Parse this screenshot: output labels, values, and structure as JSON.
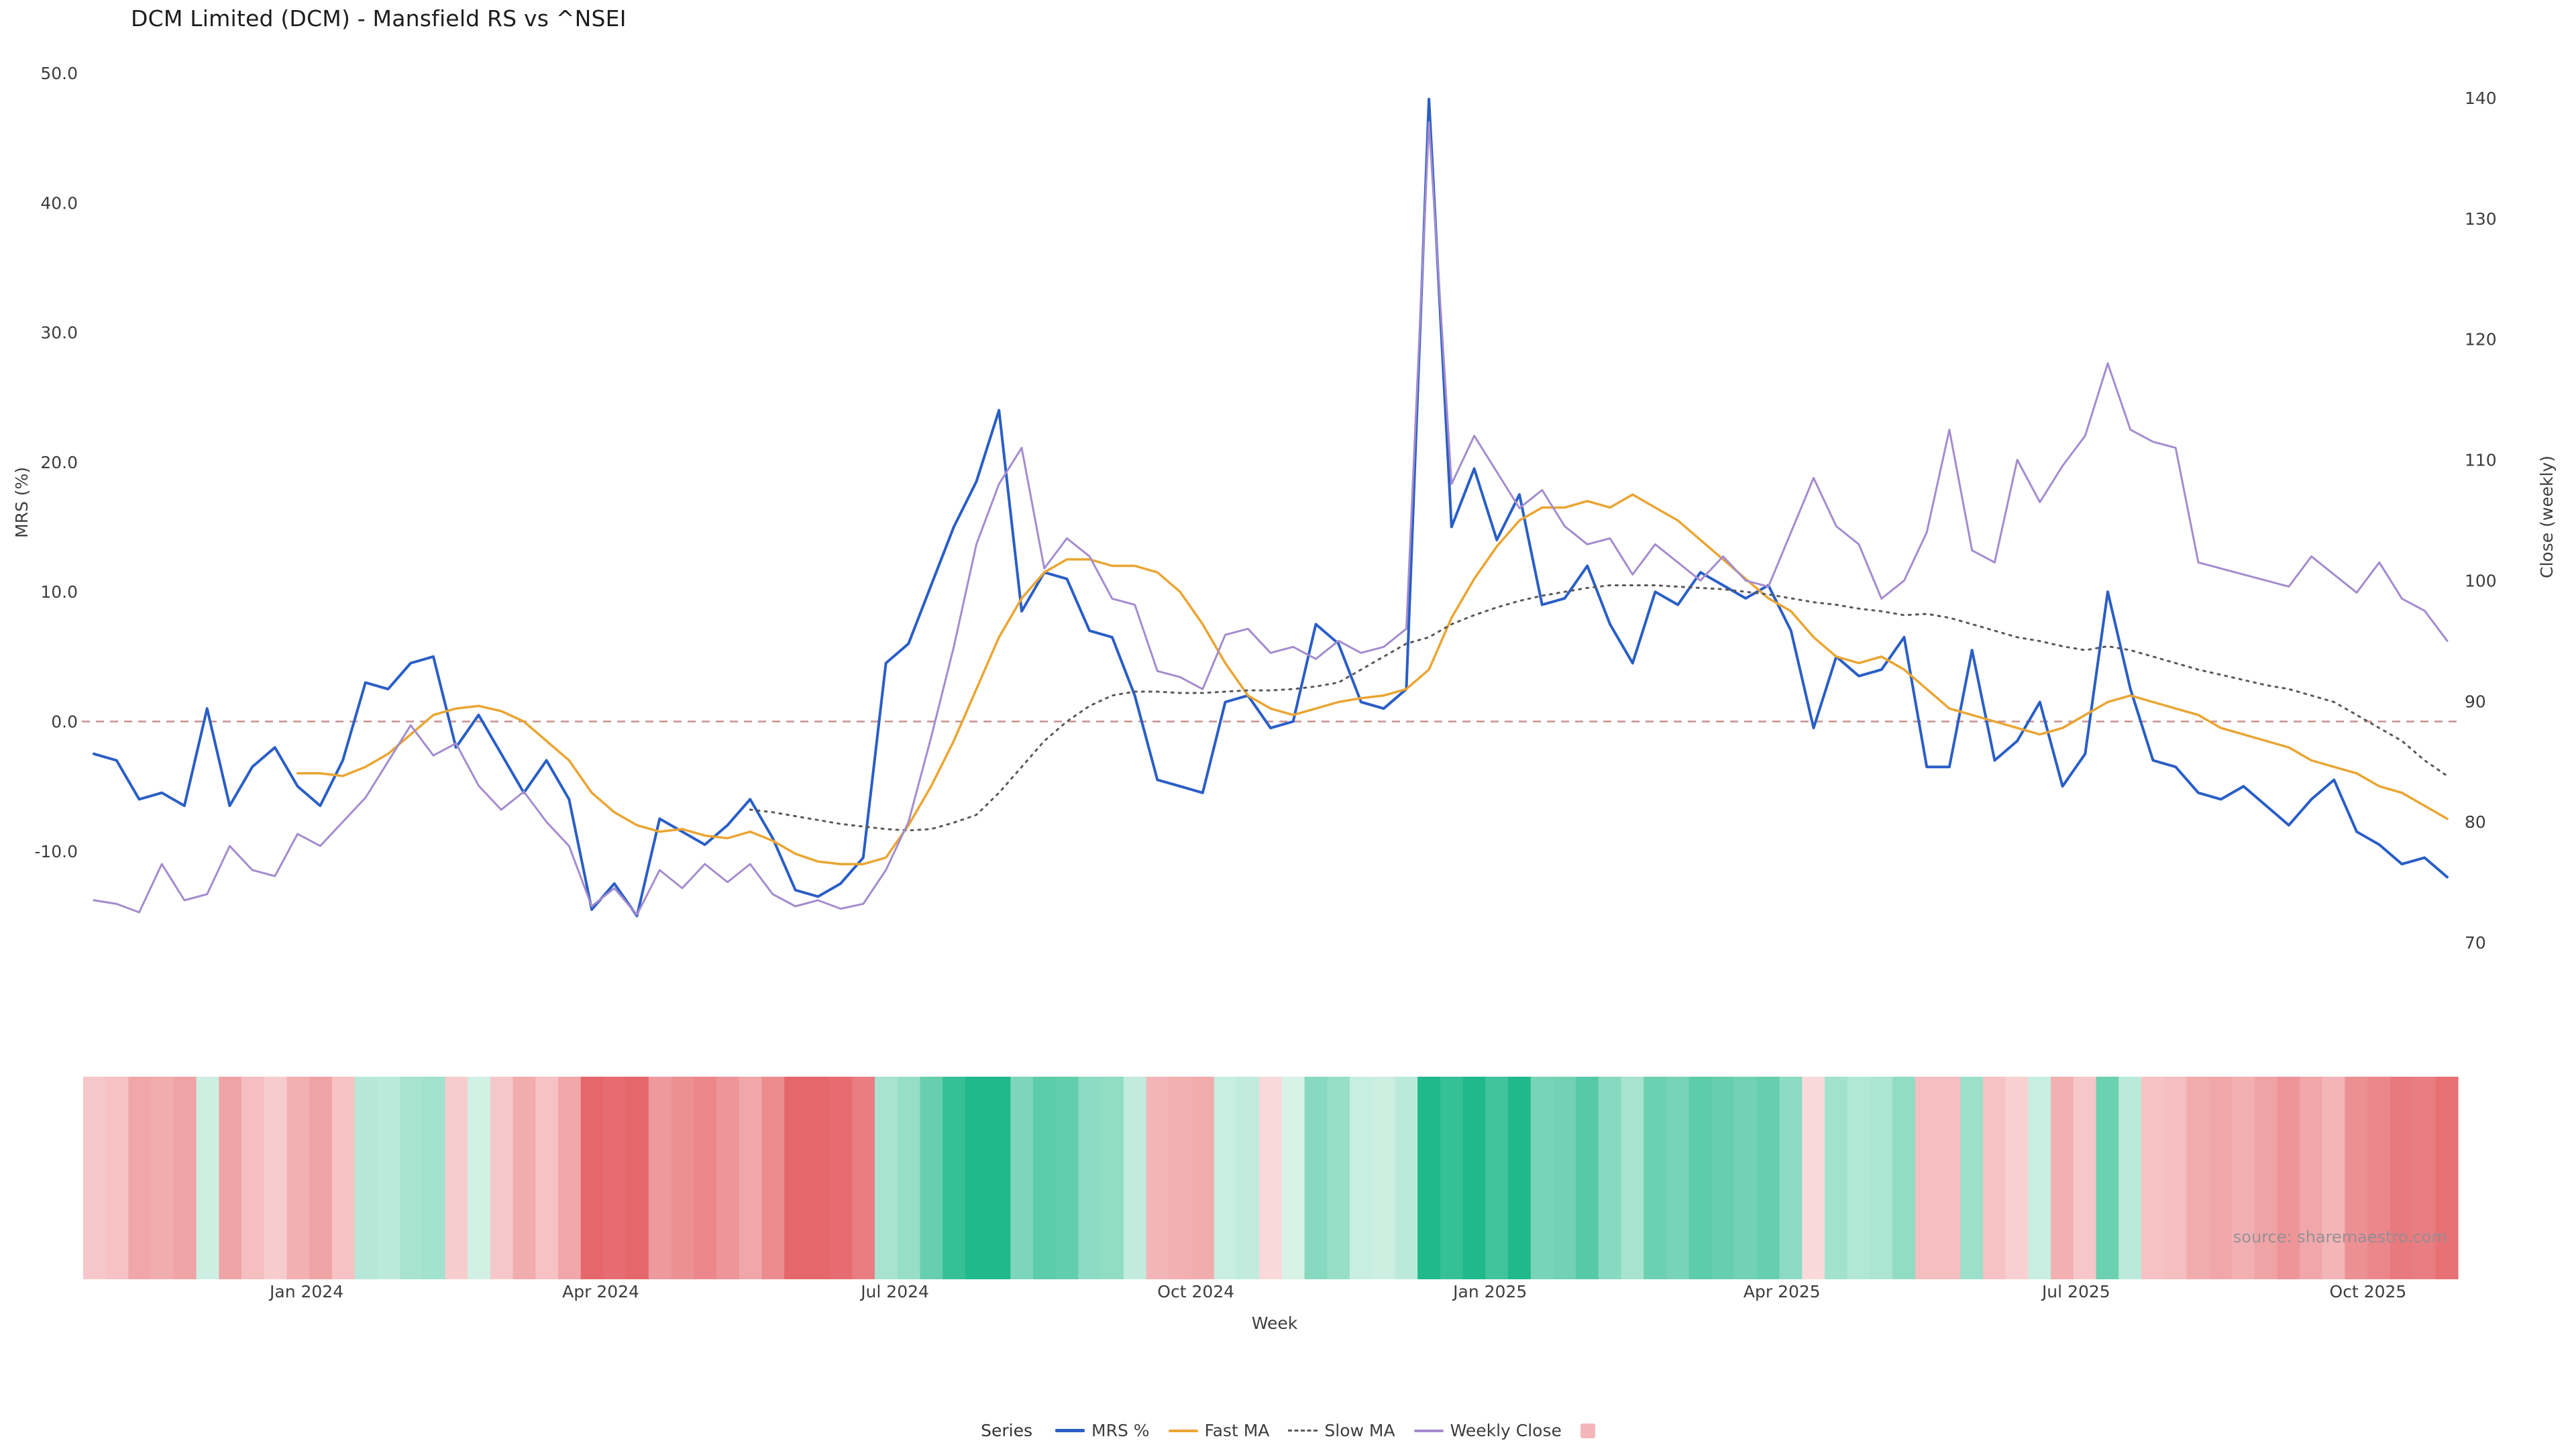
{
  "title": "DCM Limited (DCM) - Mansfield RS vs ^NSEI",
  "watermark": "source: sharemaestro.com",
  "axes": {
    "left_title": "MRS (%)",
    "right_title": "Close (weekly)",
    "x_title": "Week"
  },
  "legend": {
    "title": "Series",
    "items": [
      {
        "label": "MRS %",
        "color": "#2a5ec6",
        "style": "solid"
      },
      {
        "label": "Fast MA",
        "color": "#eaa532",
        "style": "solid"
      },
      {
        "label": "Slow MA",
        "color": "#595959",
        "style": "dashed"
      },
      {
        "label": "Weekly Close",
        "color": "#a48cce",
        "style": "solid"
      },
      {
        "label": "",
        "color": "#f5b6bb",
        "style": "square"
      }
    ]
  },
  "chart_data": {
    "type": "line",
    "x_unit": "week",
    "n_points": 105,
    "x_ticks": [
      {
        "label": "Jan 2024",
        "week": 9.4
      },
      {
        "label": "Apr 2024",
        "week": 22.4
      },
      {
        "label": "Jul 2024",
        "week": 35.4
      },
      {
        "label": "Oct 2024",
        "week": 48.7
      },
      {
        "label": "Jan 2025",
        "week": 61.7
      },
      {
        "label": "Apr 2025",
        "week": 74.6
      },
      {
        "label": "Jul 2025",
        "week": 87.6
      },
      {
        "label": "Oct 2025",
        "week": 100.5
      }
    ],
    "left_axis": {
      "ticks": [
        50,
        40,
        30,
        20,
        10,
        0,
        -10
      ],
      "labels": [
        "50.0",
        "40.0",
        "30.0",
        "20.0",
        "10.0",
        "0.0",
        "-10.0"
      ],
      "range_top": 50,
      "range_bottom": -10
    },
    "right_axis": {
      "ticks": [
        140,
        130,
        120,
        110,
        100,
        90,
        80,
        70
      ],
      "labels": [
        "140",
        "130",
        "120",
        "110",
        "100",
        "90",
        "80",
        "70"
      ],
      "range_top": 140,
      "range_bottom": 70
    },
    "zero_line": {
      "value": 0,
      "color": "#c98f8f",
      "style": "dashed"
    },
    "grid": false,
    "legend_position": "bottom",
    "series": [
      {
        "id": "mrs",
        "name": "MRS %",
        "axis": "left",
        "color": "#2a5ec6",
        "width": 4,
        "dash": false,
        "values": [
          -2.5,
          -3,
          -6,
          -5.5,
          -6.5,
          1,
          -6.5,
          -3.5,
          -2,
          -5,
          -6.5,
          -3,
          3,
          2.5,
          4.5,
          5,
          -2,
          0.5,
          -2.5,
          -5.5,
          -3,
          -6,
          -14.5,
          -12.5,
          -15,
          -7.5,
          -8.5,
          -9.5,
          -8,
          -6,
          -9,
          -13,
          -13.5,
          -12.5,
          -10.5,
          4.5,
          6,
          10.5,
          15,
          18.5,
          24,
          8.5,
          11.5,
          11,
          7,
          6.5,
          2,
          -4.5,
          -5,
          -5.5,
          1.5,
          2,
          -0.5,
          0,
          7.5,
          6,
          1.5,
          1,
          2.5,
          48,
          15,
          19.5,
          14,
          17.5,
          9,
          9.5,
          12,
          7.5,
          4.5,
          10,
          9,
          11.5,
          10.5,
          9.5,
          10.5,
          7,
          -0.5,
          5,
          3.5,
          4,
          6.5,
          -3.5,
          -3.5,
          5.5,
          -3,
          -1.5,
          1.5,
          -5,
          -2.5,
          10,
          2.5,
          -3,
          -3.5,
          -5.5,
          -6,
          -5,
          -6.5,
          -8,
          -6,
          -4.5,
          -8.5,
          -9.5,
          -11,
          -10.5,
          -12
        ]
      },
      {
        "id": "fast-ma",
        "name": "Fast MA",
        "axis": "left",
        "color": "#eaa532",
        "width": 3.5,
        "dash": false,
        "values": [
          null,
          null,
          null,
          null,
          null,
          null,
          null,
          null,
          null,
          -4,
          -4,
          -4.2,
          -3.5,
          -2.5,
          -1,
          0.5,
          1,
          1.2,
          0.8,
          0,
          -1.5,
          -3,
          -5.5,
          -7,
          -8,
          -8.5,
          -8.3,
          -8.8,
          -9,
          -8.5,
          -9.2,
          -10.2,
          -10.8,
          -11,
          -11,
          -10.5,
          -8,
          -5,
          -1.5,
          2.5,
          6.5,
          9.5,
          11.5,
          12.5,
          12.5,
          12,
          12,
          11.5,
          10,
          7.5,
          4.5,
          2,
          1,
          0.5,
          1,
          1.5,
          1.8,
          2,
          2.5,
          4,
          8,
          11,
          13.5,
          15.5,
          16.5,
          16.5,
          17,
          16.5,
          17.5,
          16.5,
          15.5,
          14,
          12.5,
          11,
          9.5,
          8.5,
          6.5,
          5,
          4.5,
          5,
          4,
          2.5,
          1,
          0.5,
          0,
          -0.5,
          -1,
          -0.5,
          0.5,
          1.5,
          2,
          1.5,
          1,
          0.5,
          -0.5,
          -1,
          -1.5,
          -2,
          -3,
          -3.5,
          -4,
          -5,
          -5.5,
          -6.5,
          -7.5
        ]
      },
      {
        "id": "slow-ma",
        "name": "Slow MA",
        "axis": "left",
        "color": "#595959",
        "width": 3,
        "dash": true,
        "values": [
          null,
          null,
          null,
          null,
          null,
          null,
          null,
          null,
          null,
          null,
          null,
          null,
          null,
          null,
          null,
          null,
          null,
          null,
          null,
          null,
          null,
          null,
          null,
          null,
          null,
          null,
          null,
          null,
          null,
          -6.8,
          -7,
          -7.3,
          -7.6,
          -7.9,
          -8.1,
          -8.3,
          -8.4,
          -8.3,
          -7.8,
          -7.2,
          -5.5,
          -3.5,
          -1.5,
          0,
          1.2,
          2,
          2.3,
          2.3,
          2.2,
          2.2,
          2.3,
          2.4,
          2.4,
          2.5,
          2.7,
          3,
          4,
          5,
          6,
          6.5,
          7.5,
          8.2,
          8.8,
          9.3,
          9.7,
          10,
          10.3,
          10.5,
          10.5,
          10.5,
          10.4,
          10.3,
          10.2,
          10,
          9.8,
          9.5,
          9.2,
          9,
          8.7,
          8.5,
          8.2,
          8.3,
          8,
          7.5,
          7,
          6.5,
          6.2,
          5.8,
          5.5,
          5.8,
          5.5,
          5,
          4.5,
          4,
          3.6,
          3.2,
          2.8,
          2.5,
          2,
          1.5,
          0.5,
          -0.5,
          -1.5,
          -3,
          -4.2
        ]
      },
      {
        "id": "weekly-close",
        "name": "Weekly Close",
        "axis": "right",
        "color": "#a48cce",
        "width": 3,
        "dash": false,
        "values": [
          73.5,
          73.2,
          72.5,
          76.5,
          73.5,
          74,
          78,
          76,
          75.5,
          79,
          78,
          80,
          82,
          85,
          88,
          85.5,
          86.5,
          83,
          81,
          82.5,
          80,
          78,
          73,
          74.5,
          72.3,
          76,
          74.5,
          76.5,
          75,
          76.5,
          74,
          73,
          73.5,
          72.8,
          73.2,
          76,
          80,
          87,
          94.5,
          103,
          108,
          111,
          101,
          103.5,
          102,
          98.5,
          98,
          92.5,
          92,
          91,
          95.5,
          96,
          94,
          94.5,
          93.5,
          95,
          94,
          94.5,
          96,
          138,
          108,
          112,
          109,
          106,
          107.5,
          104.5,
          103,
          103.5,
          100.5,
          103,
          101.5,
          100,
          102,
          100,
          99.5,
          104,
          108.5,
          104.5,
          103,
          98.5,
          100,
          104,
          112.5,
          102.5,
          101.5,
          110,
          106.5,
          109.5,
          112,
          118,
          112.5,
          111.5,
          111,
          101.5,
          101,
          100.5,
          100,
          99.5,
          102,
          100.5,
          99,
          101.5,
          98.5,
          97.5,
          95
        ]
      }
    ],
    "heatmap": {
      "based_on": "MRS %",
      "positive_color": "#20b98b",
      "negative_color": "#e5676c",
      "positive_light": "#ebf9f2",
      "negative_light": "#fdebeb"
    }
  }
}
